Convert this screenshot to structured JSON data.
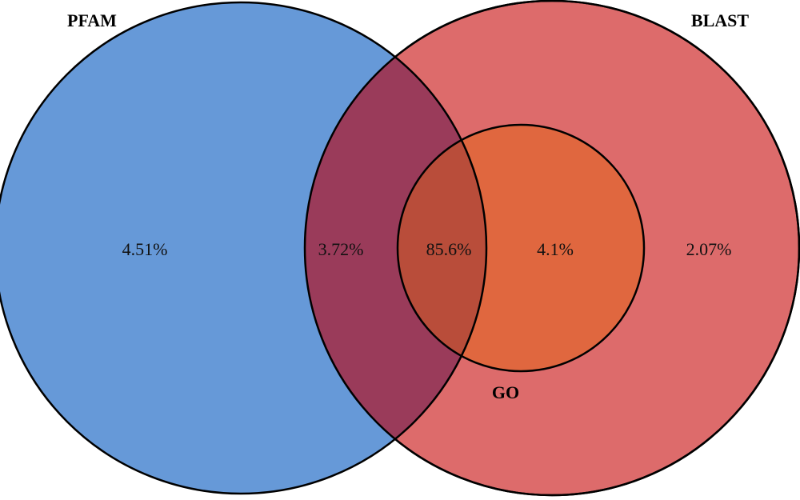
{
  "diagram": {
    "sets": [
      {
        "id": "pfam",
        "label": "PFAM",
        "color": "#4a86d3"
      },
      {
        "id": "blast",
        "label": "BLAST",
        "color": "#d85050"
      },
      {
        "id": "go",
        "label": "GO",
        "color": "#e96a3a"
      }
    ],
    "regions": [
      {
        "id": "pfam-only",
        "value": "4.51%"
      },
      {
        "id": "pfam-blast",
        "value": "3.72%"
      },
      {
        "id": "pfam-blast-go",
        "value": "85.6%"
      },
      {
        "id": "blast-go",
        "value": "4.1%"
      },
      {
        "id": "blast-only",
        "value": "2.07%"
      }
    ],
    "overlap_color": "#8e2a4c",
    "outline_color": "#000000"
  }
}
